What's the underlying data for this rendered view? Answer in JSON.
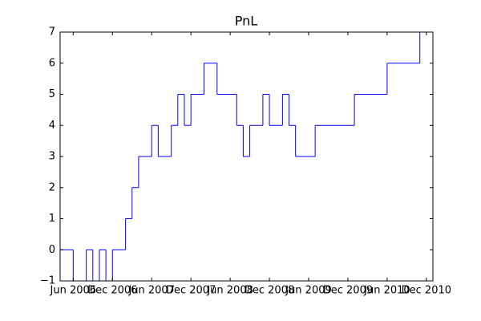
{
  "chart_data": {
    "type": "line",
    "step": "post",
    "title": "PnL",
    "x": [
      "2006-04",
      "2006-06",
      "2006-08",
      "2006-09",
      "2006-10",
      "2006-11",
      "2006-12",
      "2007-02",
      "2007-03",
      "2007-04",
      "2007-06",
      "2007-07",
      "2007-09",
      "2007-10",
      "2007-11",
      "2007-12",
      "2008-02",
      "2008-04",
      "2008-07",
      "2008-08",
      "2008-09",
      "2008-11",
      "2008-12",
      "2009-02",
      "2009-03",
      "2009-04",
      "2009-07",
      "2010-01",
      "2010-06",
      "2010-11",
      "2011-01"
    ],
    "series": [
      {
        "name": "PnL",
        "color": "#0000ff",
        "values": [
          0,
          -1,
          0,
          -1,
          0,
          -1,
          0,
          1,
          2,
          3,
          4,
          3,
          4,
          5,
          4,
          5,
          6,
          5,
          4,
          3,
          4,
          5,
          4,
          5,
          4,
          3,
          4,
          5,
          6,
          7,
          7
        ]
      }
    ],
    "xlim": [
      "2006-04",
      "2011-01"
    ],
    "xticks": [
      {
        "value": "2006-06",
        "label": "Jun 2006"
      },
      {
        "value": "2006-12",
        "label": "Dec 2006"
      },
      {
        "value": "2007-06",
        "label": "Jun 2007"
      },
      {
        "value": "2007-12",
        "label": "Dec 2007"
      },
      {
        "value": "2008-06",
        "label": "Jun 2008"
      },
      {
        "value": "2008-12",
        "label": "Dec 2008"
      },
      {
        "value": "2009-06",
        "label": "Jun 2009"
      },
      {
        "value": "2009-12",
        "label": "Dec 2009"
      },
      {
        "value": "2010-06",
        "label": "Jun 2010"
      },
      {
        "value": "2010-12",
        "label": "Dec 2010"
      }
    ],
    "ylim": [
      -1,
      7
    ],
    "yticks": [
      {
        "value": -1,
        "label": "−1"
      },
      0,
      1,
      2,
      3,
      4,
      5,
      6,
      7
    ]
  }
}
